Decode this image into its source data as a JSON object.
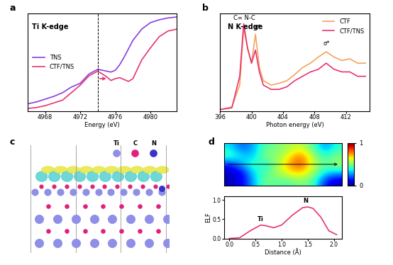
{
  "chart_data": [
    {
      "panel": "a",
      "type": "line",
      "title": "Ti K-edge",
      "xlabel": "Energy (eV)",
      "x": [
        4966,
        4967,
        4968,
        4969,
        4970,
        4971,
        4971.5,
        4972,
        4973,
        4974,
        4975,
        4975.5,
        4976,
        4976.5,
        4977,
        4977.5,
        4978,
        4979,
        4980,
        4981,
        4982,
        4983
      ],
      "series": [
        {
          "name": "TNS",
          "color": "#8a3ee0",
          "values": [
            0.08,
            0.1,
            0.13,
            0.16,
            0.2,
            0.26,
            0.28,
            0.3,
            0.4,
            0.45,
            0.43,
            0.42,
            0.44,
            0.5,
            0.58,
            0.67,
            0.76,
            0.88,
            0.95,
            0.98,
            1.0,
            1.01
          ]
        },
        {
          "name": "CTF/TNS",
          "color": "#e8336f",
          "values": [
            0.03,
            0.04,
            0.06,
            0.09,
            0.12,
            0.2,
            0.24,
            0.28,
            0.38,
            0.43,
            0.37,
            0.33,
            0.35,
            0.36,
            0.34,
            0.32,
            0.35,
            0.55,
            0.68,
            0.8,
            0.86,
            0.88
          ]
        }
      ],
      "xlim": [
        4966,
        4983
      ],
      "xticks": [
        4968,
        4972,
        4976,
        4980
      ],
      "ylim": [
        0,
        1.05
      ],
      "tick_labels": "x",
      "legend": "center left"
    },
    {
      "panel": "b",
      "type": "line",
      "title": "N K-edge",
      "xlabel": "Photon energy (eV)",
      "x": [
        396,
        397.5,
        398.5,
        399.0,
        399.5,
        400.0,
        400.5,
        401.0,
        401.5,
        402.5,
        403.5,
        404.5,
        405.5,
        406.5,
        407.5,
        408.5,
        409.5,
        410.5,
        411.5,
        412.5,
        413.5,
        414.5
      ],
      "series": [
        {
          "name": "CTF",
          "color": "#f5a35c",
          "values": [
            0.02,
            0.05,
            0.3,
            0.95,
            0.72,
            0.55,
            0.88,
            0.5,
            0.35,
            0.3,
            0.32,
            0.35,
            0.42,
            0.5,
            0.55,
            0.62,
            0.68,
            0.62,
            0.58,
            0.6,
            0.55,
            0.55
          ]
        },
        {
          "name": "CTF/TNS",
          "color": "#e8336f",
          "values": [
            0.02,
            0.04,
            0.4,
            1.0,
            0.72,
            0.55,
            0.7,
            0.45,
            0.3,
            0.25,
            0.25,
            0.28,
            0.35,
            0.4,
            0.45,
            0.48,
            0.55,
            0.48,
            0.45,
            0.45,
            0.4,
            0.4
          ]
        }
      ],
      "annotations": [
        {
          "text": "C= N-C",
          "x": 399.1,
          "y": 1.03
        },
        {
          "text": "π*",
          "x": 400.8,
          "y": 0.92
        },
        {
          "text": "σ*",
          "x": 409.5,
          "y": 0.74
        }
      ],
      "xlim": [
        396,
        415
      ],
      "xticks": [
        396,
        400,
        404,
        408,
        412
      ],
      "ylim": [
        0,
        1.12
      ],
      "tick_labels": "x",
      "legend": "upper right"
    },
    {
      "panel": "c",
      "type": "structure",
      "atoms": [
        {
          "name": "Ti",
          "color": "#8f8fe8"
        },
        {
          "name": "C",
          "color": "#e0207a"
        },
        {
          "name": "N",
          "color": "#3535c8"
        }
      ]
    },
    {
      "panel": "d",
      "type": "line",
      "xlabel": "Distance (Å)",
      "ylabel": "ELF",
      "heatmap": {
        "cells": [
          [
            0.35,
            0.2,
            0.3,
            0.45,
            0.5,
            0.55,
            0.6,
            0.45,
            0.25,
            0.4
          ],
          [
            0.45,
            0.35,
            0.3,
            0.55,
            0.5,
            0.65,
            0.8,
            0.55,
            0.4,
            0.5
          ],
          [
            0.15,
            0.3,
            0.45,
            0.35,
            0.55,
            0.75,
            0.85,
            0.6,
            0.45,
            0.55
          ],
          [
            0.05,
            0.1,
            0.35,
            0.45,
            0.55,
            0.65,
            0.7,
            0.55,
            0.35,
            0.3
          ],
          [
            0.05,
            0.1,
            0.3,
            0.5,
            0.45,
            0.45,
            0.5,
            0.45,
            0.15,
            0.05
          ]
        ],
        "colorbar_range": [
          0,
          1
        ],
        "colorbar_ticks": [
          0,
          1
        ]
      },
      "x": [
        0.0,
        0.2,
        0.4,
        0.6,
        0.7,
        0.85,
        1.0,
        1.2,
        1.4,
        1.5,
        1.6,
        1.75,
        1.9,
        2.05
      ],
      "series": [
        {
          "name": "ELF",
          "color": "#e8336f",
          "values": [
            0.0,
            0.02,
            0.2,
            0.35,
            0.33,
            0.28,
            0.35,
            0.6,
            0.8,
            0.82,
            0.78,
            0.55,
            0.2,
            0.1
          ]
        }
      ],
      "annotations": [
        {
          "text": "Ti",
          "x": 0.6,
          "y": 0.42
        },
        {
          "text": "N",
          "x": 1.45,
          "y": 0.9
        }
      ],
      "xlim": [
        -0.1,
        2.15
      ],
      "xticks": [
        {
          "value": 0.0,
          "label": "0.0"
        },
        {
          "value": 0.5,
          "label": "0.5"
        },
        {
          "value": 1.0,
          "label": "1.0"
        },
        {
          "value": 1.5,
          "label": "1.5"
        },
        {
          "value": 2.0,
          "label": "2.0"
        }
      ],
      "ylim": [
        0,
        1.1
      ],
      "yticks": [
        {
          "value": 0.0,
          "label": "0.0"
        },
        {
          "value": 0.5,
          "label": "0.5"
        },
        {
          "value": 1.0,
          "label": "1.0"
        }
      ]
    }
  ]
}
